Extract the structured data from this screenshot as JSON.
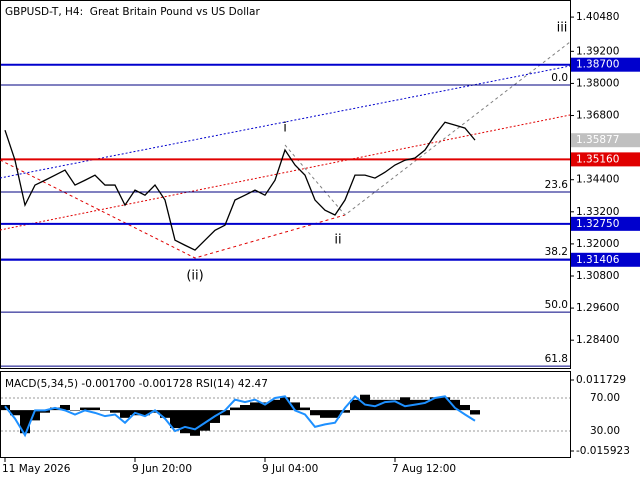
{
  "chart_data": [
    {
      "type": "line",
      "title": "GBPUSD-T, H4:  Great Britain Pound vs US Dollar",
      "categories": [
        "11 May 2026",
        null,
        null,
        null,
        null,
        null,
        null,
        null,
        null,
        null,
        null,
        null,
        null,
        "9 Jun 20:00",
        null,
        null,
        null,
        null,
        null,
        null,
        null,
        null,
        null,
        null,
        null,
        null,
        "9 Jul 04:00",
        null,
        null,
        null,
        null,
        null,
        null,
        null,
        null,
        null,
        null,
        null,
        null,
        "7 Aug 12:00",
        null,
        null,
        null,
        null,
        null,
        null,
        null,
        null
      ],
      "series": [
        {
          "name": "GBPUSD-T",
          "color": "#000000",
          "values": [
            1.3625,
            1.3513,
            1.3345,
            1.342,
            1.3438,
            1.3457,
            1.3476,
            1.342,
            1.3438,
            1.3457,
            1.342,
            1.342,
            1.3345,
            1.3401,
            1.3382,
            1.342,
            1.3364,
            1.3214,
            1.3195,
            1.3177,
            1.3214,
            1.3251,
            1.327,
            1.3364,
            1.3382,
            1.3401,
            1.3382,
            1.3438,
            1.3551,
            1.3495,
            1.3457,
            1.3364,
            1.3326,
            1.3308,
            1.3364,
            1.3457,
            1.3457,
            1.3446,
            1.3468,
            1.3495,
            1.3513,
            1.3521,
            1.3551,
            1.3607,
            1.3655,
            1.3644,
            1.3633,
            1.3588
          ]
        }
      ],
      "ylim": [
        1.2736,
        1.4082
      ],
      "yticks": [
        {
          "value": 1.4048,
          "label": "1.40480"
        },
        {
          "value": 1.392,
          "label": "1.39200"
        },
        {
          "value": 1.38,
          "label": "1.38000"
        },
        {
          "value": 1.368,
          "label": "1.36800"
        },
        {
          "value": 1.344,
          "label": "1.34400"
        },
        {
          "value": 1.332,
          "label": "1.33200"
        },
        {
          "value": 1.32,
          "label": "1.32000"
        },
        {
          "value": 1.308,
          "label": "1.30800"
        },
        {
          "value": 1.296,
          "label": "1.29600"
        },
        {
          "value": 1.284,
          "label": "1.28400"
        }
      ],
      "grid": false,
      "current_price": 1.35877,
      "levels": [
        {
          "value": 1.387,
          "label": "1.38700",
          "color": "#0000cd"
        },
        {
          "value": 1.3516,
          "label": "1.35160",
          "color": "#e00000"
        },
        {
          "value": 1.3275,
          "label": "1.32750",
          "color": "#0000cd"
        },
        {
          "value": 1.31406,
          "label": "1.31406",
          "color": "#0000cd"
        }
      ],
      "fib_levels": [
        {
          "label": "0.0",
          "price": 1.3794
        },
        {
          "label": "23.6",
          "price": 1.3394
        },
        {
          "label": "38.2",
          "price": 1.3143
        },
        {
          "label": "50.0",
          "price": 1.2945
        },
        {
          "label": "61.8",
          "price": 1.2743
        }
      ],
      "annotations": [
        {
          "text": "iii",
          "color": "#808080"
        },
        {
          "text": "i",
          "color": "#808080"
        },
        {
          "text": "ii",
          "color": "#808080"
        },
        {
          "text": "(ii)",
          "color": "#e00000"
        }
      ]
    },
    {
      "type": "bar",
      "status": [
        "MACD(5,34,5)",
        "-0.001700",
        "-0.001728",
        "RSI(14)",
        "42.47"
      ],
      "series": [
        {
          "name": "MACD(5,34,5)",
          "color": "#000000",
          "values": [
            0.002,
            -0.002,
            -0.009,
            -0.004,
            -0.001,
            0.001,
            0.002,
            0.0,
            0.001,
            0.001,
            0.0,
            -0.001,
            -0.003,
            -0.002,
            -0.002,
            -0.001,
            -0.003,
            -0.007,
            -0.009,
            -0.01,
            -0.008,
            -0.005,
            -0.002,
            0.001,
            0.002,
            0.003,
            0.003,
            0.004,
            0.005,
            0.003,
            0.001,
            -0.002,
            -0.003,
            -0.003,
            -0.001,
            0.004,
            0.006,
            0.004,
            0.004,
            0.004,
            0.005,
            0.004,
            0.004,
            0.005,
            0.005,
            0.004,
            0.002,
            -0.0017
          ]
        },
        {
          "name": "RSI(14)",
          "color": "#1e90ff",
          "axis": "y2",
          "values": [
            60,
            45,
            25,
            55,
            55,
            58,
            55,
            50,
            55,
            52,
            48,
            50,
            40,
            52,
            48,
            55,
            45,
            30,
            35,
            32,
            40,
            48,
            55,
            68,
            65,
            68,
            62,
            70,
            72,
            55,
            50,
            35,
            38,
            40,
            58,
            72,
            62,
            60,
            65,
            66,
            60,
            62,
            64,
            70,
            72,
            58,
            50,
            42.47
          ]
        }
      ],
      "ylim": [
        -0.01865,
        0.01485
      ],
      "yticks": [
        0.011729,
        -0.015923
      ],
      "y2lim": [
        -2.7,
        101.5
      ],
      "y2ticks": [
        {
          "value": 70,
          "label": "70.00"
        },
        {
          "value": 30,
          "label": "30.00"
        }
      ]
    }
  ]
}
